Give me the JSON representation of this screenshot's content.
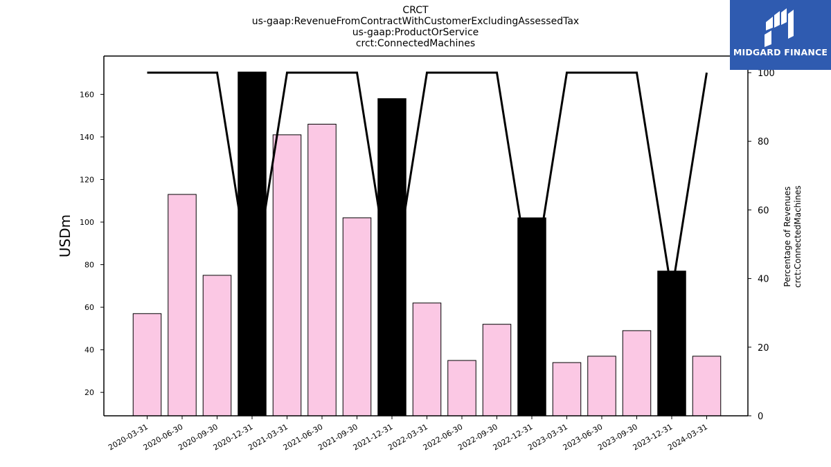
{
  "header": {
    "line1": "CRCT",
    "line2": "us-gaap:RevenueFromContractWithCustomerExcludingAssessedTax",
    "line3": "us-gaap:ProductOrService",
    "line4": "crct:ConnectedMachines"
  },
  "logo": {
    "text": "MIDGARD FINANCE",
    "bg": "#2f5bb0"
  },
  "chart_data": {
    "type": "bar",
    "categories": [
      "2020-03-31",
      "2020-06-30",
      "2020-09-30",
      "2020-12-31",
      "2021-03-31",
      "2021-06-30",
      "2021-09-30",
      "2021-12-31",
      "2022-03-31",
      "2022-06-30",
      "2022-09-30",
      "2022-12-31",
      "2023-03-31",
      "2023-06-30",
      "2023-09-30",
      "2023-12-31",
      "2024-03-31"
    ],
    "values": [
      57,
      113,
      75,
      170.5,
      141,
      146,
      102,
      158,
      62,
      35,
      52,
      102,
      34,
      37,
      49,
      77,
      37
    ],
    "bar_colors": [
      "#fbc8e4",
      "#fbc8e4",
      "#fbc8e4",
      "#000000",
      "#fbc8e4",
      "#fbc8e4",
      "#fbc8e4",
      "#000000",
      "#fbc8e4",
      "#fbc8e4",
      "#fbc8e4",
      "#000000",
      "#fbc8e4",
      "#fbc8e4",
      "#fbc8e4",
      "#000000",
      "#fbc8e4"
    ],
    "line_series": {
      "values": [
        100,
        100,
        100,
        36,
        100,
        100,
        100,
        36,
        100,
        100,
        100,
        36,
        100,
        100,
        100,
        36,
        100
      ],
      "color": "#000000"
    },
    "ylabel": "USDm",
    "y2label_line1": "Percentage of Revenues",
    "y2label_line2": "crct:ConnectedMachines",
    "ylim": [
      9,
      178
    ],
    "y2lim": [
      0,
      100.0
    ],
    "yticks": [
      20,
      40,
      60,
      80,
      100,
      120,
      140,
      160
    ],
    "y2ticks": [
      0,
      20,
      40,
      60,
      80,
      100
    ],
    "grid": false
  }
}
